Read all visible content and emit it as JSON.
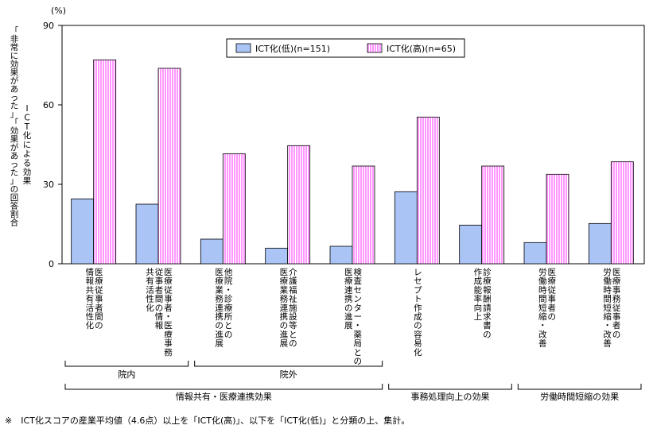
{
  "chart_data": {
    "type": "bar",
    "unit": "(%)",
    "ylabel_lines": [
      "ICT化による効果",
      "「非常に効果があった」「効果があった」の回答割合"
    ],
    "ylim": [
      0,
      90
    ],
    "yticks": [
      0,
      30,
      60,
      90
    ],
    "grid": false,
    "legend_position": "top-right",
    "categories": [
      [
        "医療従事者間の",
        "情報共有活性化"
      ],
      [
        "医療従事者・医療事務",
        "従事者間の情報",
        "共有活性化"
      ],
      [
        "他院・診療所との",
        "医療業務連携の進展"
      ],
      [
        "介護福祉施設等との",
        "医療業務連携の進展"
      ],
      [
        "検査センター・薬局との",
        "医療連携の進展"
      ],
      [
        "レセプト作成の容易化"
      ],
      [
        "診療報酬請求書の",
        "作成能率向上"
      ],
      [
        "医療従事者の",
        "労働時間短縮・改善"
      ],
      [
        "医療事務従事者の",
        "労働時間短縮・改善"
      ]
    ],
    "series": [
      {
        "name": "ICT化(低)(n=151)",
        "color": "#a9c4f5",
        "values": [
          24.5,
          22.5,
          9.3,
          5.9,
          6.6,
          27.2,
          14.6,
          8.0,
          15.2
        ]
      },
      {
        "name": "ICT化(高)(n=65)",
        "color": "#ff99ff",
        "values": [
          77.0,
          73.8,
          41.5,
          44.6,
          36.9,
          55.4,
          36.9,
          33.8,
          38.5
        ]
      }
    ],
    "groups_level1": [
      {
        "label": "院内",
        "from": 0,
        "to": 1
      },
      {
        "label": "院外",
        "from": 2,
        "to": 4
      }
    ],
    "groups_level2": [
      {
        "label": "情報共有・医療連携効果",
        "from": 0,
        "to": 4
      },
      {
        "label": "事務処理向上の効果",
        "from": 5,
        "to": 6
      },
      {
        "label": "労働時間短縮の効果",
        "from": 7,
        "to": 8
      }
    ]
  },
  "footnote": "※　ICT化スコアの産業平均値（4.6点）以上を「ICT化(高)」、以下を「ICT化(低)」と分類の上、集計。"
}
